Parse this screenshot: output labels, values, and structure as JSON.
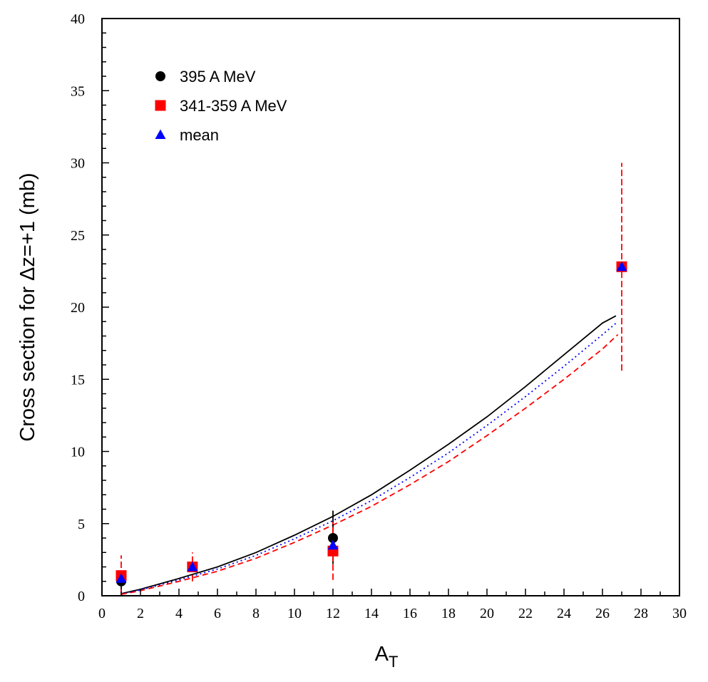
{
  "chart_data": {
    "type": "scatter",
    "xlabel": "A",
    "xlabel_sub": "T",
    "ylabel": "Cross section for Δz=+1 (mb)",
    "xlim": [
      0,
      30
    ],
    "ylim": [
      0,
      40
    ],
    "x_ticks": [
      0,
      2,
      4,
      6,
      8,
      10,
      12,
      14,
      16,
      18,
      20,
      22,
      24,
      26,
      28,
      30
    ],
    "y_ticks": [
      0,
      5,
      10,
      15,
      20,
      25,
      30,
      35,
      40
    ],
    "grid": false,
    "legend_position": "top-left",
    "series": [
      {
        "name": "395 A MeV",
        "marker": "circle",
        "color": "#000000",
        "points": [
          {
            "x": 1,
            "y": 1.0,
            "ylo": 0.3,
            "yhi": 1.7
          },
          {
            "x": 12,
            "y": 4.0,
            "ylo": 2.2,
            "yhi": 5.9
          }
        ]
      },
      {
        "name": "341-359 A MeV",
        "marker": "square",
        "color": "#ff0000",
        "points": [
          {
            "x": 1,
            "y": 1.4,
            "ylo": 0.0,
            "yhi": 2.8
          },
          {
            "x": 4.7,
            "y": 2.0,
            "ylo": 1.0,
            "yhi": 3.0
          },
          {
            "x": 12,
            "y": 3.1,
            "ylo": 1.1,
            "yhi": 5.1
          },
          {
            "x": 27,
            "y": 22.8,
            "ylo": 15.6,
            "yhi": 30.0
          }
        ]
      },
      {
        "name": "mean",
        "marker": "triangle",
        "color": "#0000ff",
        "points": [
          {
            "x": 1,
            "y": 1.2
          },
          {
            "x": 4.7,
            "y": 2.0
          },
          {
            "x": 12,
            "y": 3.5
          },
          {
            "x": 27,
            "y": 22.8
          }
        ]
      }
    ],
    "curves": [
      {
        "style": "solid",
        "color": "#000000",
        "x": [
          1,
          2,
          4,
          6,
          8,
          10,
          12,
          14,
          16,
          18,
          20,
          22,
          24,
          26,
          26.7
        ],
        "y": [
          0.15,
          0.45,
          1.2,
          2.0,
          3.0,
          4.2,
          5.5,
          7.0,
          8.7,
          10.5,
          12.4,
          14.5,
          16.7,
          18.9,
          19.4
        ]
      },
      {
        "style": "dotted",
        "color": "#0000ff",
        "x": [
          1,
          2,
          4,
          6,
          8,
          10,
          12,
          14,
          16,
          18,
          20,
          22,
          24,
          26,
          26.8
        ],
        "y": [
          0.12,
          0.4,
          1.1,
          1.85,
          2.8,
          3.95,
          5.2,
          6.6,
          8.2,
          9.9,
          11.8,
          13.8,
          15.9,
          18.1,
          19.0
        ]
      },
      {
        "style": "dashed",
        "color": "#ff0000",
        "x": [
          1,
          2,
          4,
          6,
          8,
          10,
          12,
          14,
          16,
          18,
          20,
          22,
          24,
          26,
          26.8
        ],
        "y": [
          0.1,
          0.35,
          1.0,
          1.7,
          2.6,
          3.7,
          4.9,
          6.2,
          7.7,
          9.3,
          11.1,
          13.0,
          15.0,
          17.1,
          18.1
        ]
      }
    ]
  }
}
